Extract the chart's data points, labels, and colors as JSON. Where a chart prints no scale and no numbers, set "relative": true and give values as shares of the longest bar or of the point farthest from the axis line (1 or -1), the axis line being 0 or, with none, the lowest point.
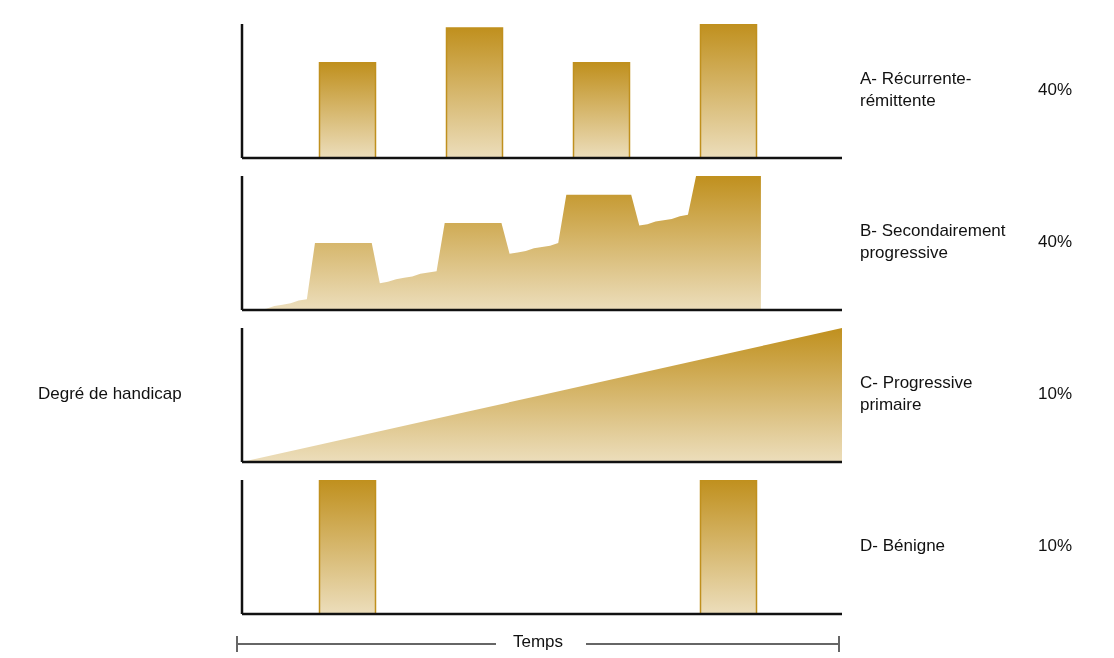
{
  "chart_data": [
    {
      "type": "bar",
      "categories": [
        null,
        null,
        null,
        null
      ],
      "values": [
        0.71,
        0.97,
        0.71,
        1
      ],
      "color": "#c0901e",
      "relative": true,
      "annotations": [
        "A- Récurrente-rémittente",
        "40%"
      ]
    },
    {
      "type": "area",
      "categories": [
        null,
        null,
        null,
        null,
        null,
        null,
        null,
        null,
        null,
        null,
        null,
        null,
        null,
        null,
        null,
        null,
        null,
        null,
        null,
        null,
        null,
        null,
        null,
        null,
        null,
        null,
        null,
        null,
        null,
        null,
        null,
        null,
        null,
        null,
        null,
        null,
        null,
        null,
        null,
        null,
        null,
        null,
        null,
        null,
        null,
        null,
        null,
        null,
        null,
        null,
        null,
        null,
        null,
        null,
        null,
        null,
        null,
        null,
        null,
        null,
        null,
        null,
        null,
        null,
        null,
        null,
        null,
        null,
        null,
        null,
        null,
        null,
        null,
        null,
        null
      ],
      "color": "#c0901e",
      "relative": true,
      "annotations": [
        "B- Secondairement progressive",
        "40%"
      ],
      "values": [
        null,
        null,
        0,
        0.01,
        0.03,
        0.04,
        0.05,
        0.07,
        0.08,
        0.5,
        0.5,
        0.5,
        0.5,
        0.5,
        0.5,
        0.5,
        0.5,
        0.2,
        0.21,
        0.23,
        0.24,
        0.25,
        0.27,
        0.28,
        0.29,
        0.65,
        0.65,
        0.65,
        0.65,
        0.65,
        0.65,
        0.65,
        0.65,
        0.42,
        0.43,
        0.44,
        0.46,
        0.47,
        0.48,
        0.5,
        0.86,
        0.86,
        0.86,
        0.86,
        0.86,
        0.86,
        0.86,
        0.86,
        0.86,
        0.63,
        0.64,
        0.66,
        0.67,
        0.68,
        0.7,
        0.71,
        1,
        1,
        1,
        1,
        1,
        1,
        1,
        1,
        1,
        null,
        null,
        null,
        null,
        null,
        null,
        null,
        null,
        null,
        null
      ]
    },
    {
      "type": "area",
      "ylabel": "Degré de handicap",
      "categories": [
        null,
        null,
        null,
        null,
        null,
        null,
        null,
        null,
        null
      ],
      "values": [
        0,
        0.125,
        0.25,
        0.375,
        0.5,
        0.625,
        0.75,
        0.875,
        1
      ],
      "color": "#c0901e",
      "relative": true,
      "annotations": [
        "C- Progressive primaire",
        "10%"
      ]
    },
    {
      "type": "bar",
      "xlabel": "Temps",
      "categories": [
        null,
        null
      ],
      "values": [
        1,
        1
      ],
      "color": "#c0901e",
      "relative": true,
      "annotations": [
        "D- Bénigne",
        "10%"
      ]
    }
  ]
}
